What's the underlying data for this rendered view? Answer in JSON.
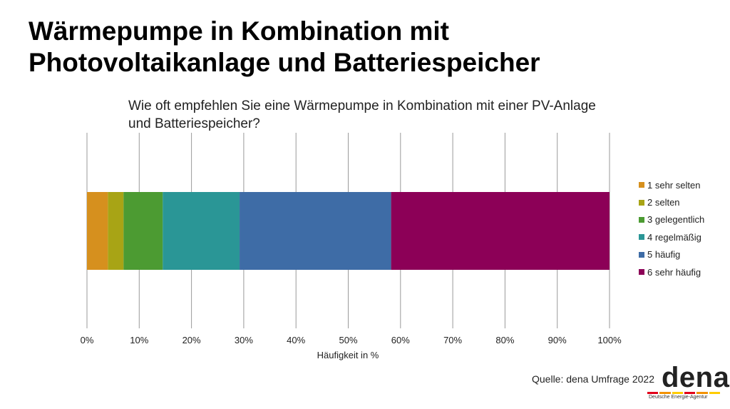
{
  "title": {
    "line1": "Wärmepumpe in Kombination mit",
    "line2": "Photovoltaikanlage und Batteriespeicher"
  },
  "question": {
    "line1": "Wie oft empfehlen Sie eine Wärmepumpe in Kombination mit einer PV-Anlage",
    "line2": "und Batteriespeicher?"
  },
  "chart_data": {
    "type": "bar",
    "orientation": "horizontal",
    "stacked": true,
    "title": "Wie oft empfehlen Sie eine Wärmepumpe in Kombination mit einer PV-Anlage und Batteriespeicher?",
    "xlabel": "Häufigkeit in %",
    "ylabel": "",
    "xlim": [
      0,
      100
    ],
    "ticks": [
      "0%",
      "10%",
      "20%",
      "30%",
      "40%",
      "50%",
      "60%",
      "70%",
      "80%",
      "90%",
      "100%"
    ],
    "grid": true,
    "legend_position": "right",
    "series": [
      {
        "name": "1 sehr selten",
        "value": 4.0,
        "color": "#D6901E"
      },
      {
        "name": "2 selten",
        "value": 3.0,
        "color": "#A8A415"
      },
      {
        "name": "3 gelegentlich",
        "value": 7.5,
        "color": "#4C9B32"
      },
      {
        "name": "4 regelmäßig",
        "value": 14.7,
        "color": "#2A9696"
      },
      {
        "name": "5 häufig",
        "value": 29.0,
        "color": "#3E6CA6"
      },
      {
        "name": "6 sehr häufig",
        "value": 41.8,
        "color": "#8C0057"
      }
    ]
  },
  "source": "Quelle: dena Umfrage 2022",
  "logo": {
    "word": "dena",
    "subtitle": "Deutsche Energie-Agentur",
    "stripe_colors": [
      "#E2001A",
      "#F39200",
      "#FFCC00",
      "#E2001A",
      "#F39200",
      "#FFCC00"
    ]
  }
}
